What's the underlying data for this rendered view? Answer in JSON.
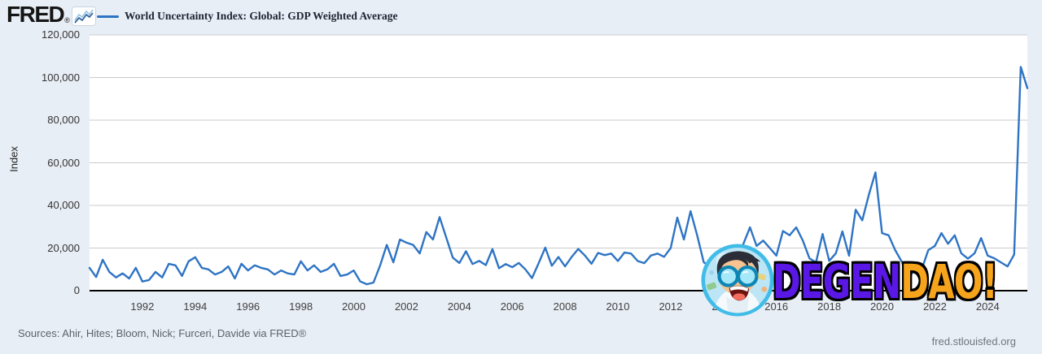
{
  "header": {
    "logo_text": "FRED",
    "logo_reg_mark": "®",
    "legend_label": "World Uncertainty Index: Global: GDP Weighted Average"
  },
  "y_axis": {
    "title": "Index",
    "tick_labels": [
      "120,000",
      "100,000",
      "80,000",
      "60,000",
      "40,000",
      "20,000",
      "0"
    ]
  },
  "x_axis": {
    "tick_labels": [
      "1992",
      "1994",
      "1996",
      "1998",
      "2000",
      "2002",
      "2004",
      "2006",
      "2008",
      "2010",
      "2012",
      "2014",
      "2016",
      "2018",
      "2020",
      "2022",
      "2024"
    ]
  },
  "footer": {
    "sources": "Sources: Ahir, Hites; Bloom, Nick; Furceri, Davide via FRED®",
    "site": "fred.stlouisfed.org"
  },
  "watermark": {
    "part1": "DEGEN",
    "part2": "DAO!",
    "part1_color": "#5a18e6",
    "part2_color": "#f6a41c",
    "avatar": "laughing-goggles-character"
  },
  "colors": {
    "line": "#2e74c4",
    "background": "#e8eef5",
    "plot_background": "#ffffff",
    "gridline": "#cbcbcb",
    "axis": "#000000"
  },
  "chart_data": {
    "type": "line",
    "title": "World Uncertainty Index: Global: GDP Weighted Average",
    "ylabel": "Index",
    "ylim": [
      0,
      120000
    ],
    "y_ticks": [
      0,
      20000,
      40000,
      60000,
      80000,
      100000,
      120000
    ],
    "x_start_year": 1990.0,
    "x_step_years": 0.25,
    "x_tick_years": [
      1992,
      1994,
      1996,
      1998,
      2000,
      2002,
      2004,
      2006,
      2008,
      2010,
      2012,
      2014,
      2016,
      2018,
      2020,
      2022,
      2024
    ],
    "grid": "horizontal",
    "legend_position": "top-left",
    "series_name": "World Uncertainty Index: Global: GDP Weighted Average",
    "frequency": "quarterly",
    "values": [
      10700,
      6400,
      14500,
      8800,
      6200,
      8100,
      5700,
      10700,
      4300,
      5000,
      8800,
      6200,
      12600,
      11900,
      6900,
      13800,
      15700,
      10700,
      10000,
      7600,
      8800,
      11400,
      5700,
      12600,
      9500,
      11900,
      10700,
      10000,
      7600,
      9500,
      8100,
      7600,
      13800,
      9500,
      11900,
      8800,
      10000,
      12600,
      6900,
      7600,
      9500,
      4300,
      3000,
      3800,
      11900,
      21500,
      13300,
      24000,
      22500,
      21500,
      17500,
      27500,
      24000,
      34500,
      25000,
      15500,
      13000,
      18500,
      12500,
      14000,
      12000,
      19500,
      10500,
      12500,
      11000,
      13000,
      10000,
      5900,
      12900,
      20200,
      11700,
      15800,
      11400,
      15800,
      19600,
      16500,
      12600,
      17700,
      16700,
      17400,
      13900,
      17900,
      17400,
      13900,
      12900,
      16500,
      17400,
      15900,
      20000,
      34300,
      24000,
      37300,
      26000,
      13300,
      11400,
      14500,
      15500,
      16000,
      12000,
      22000,
      29700,
      21000,
      23500,
      20000,
      16400,
      28000,
      26000,
      29700,
      23500,
      15200,
      13300,
      26600,
      14000,
      17500,
      27800,
      16400,
      38000,
      33000,
      45000,
      55500,
      27000,
      26000,
      19000,
      13500,
      4200,
      11800,
      10000,
      19000,
      21000,
      27000,
      22000,
      26000,
      17500,
      15000,
      17500,
      24700,
      16400,
      15200,
      13300,
      11400,
      17000,
      105000,
      95000
    ]
  }
}
